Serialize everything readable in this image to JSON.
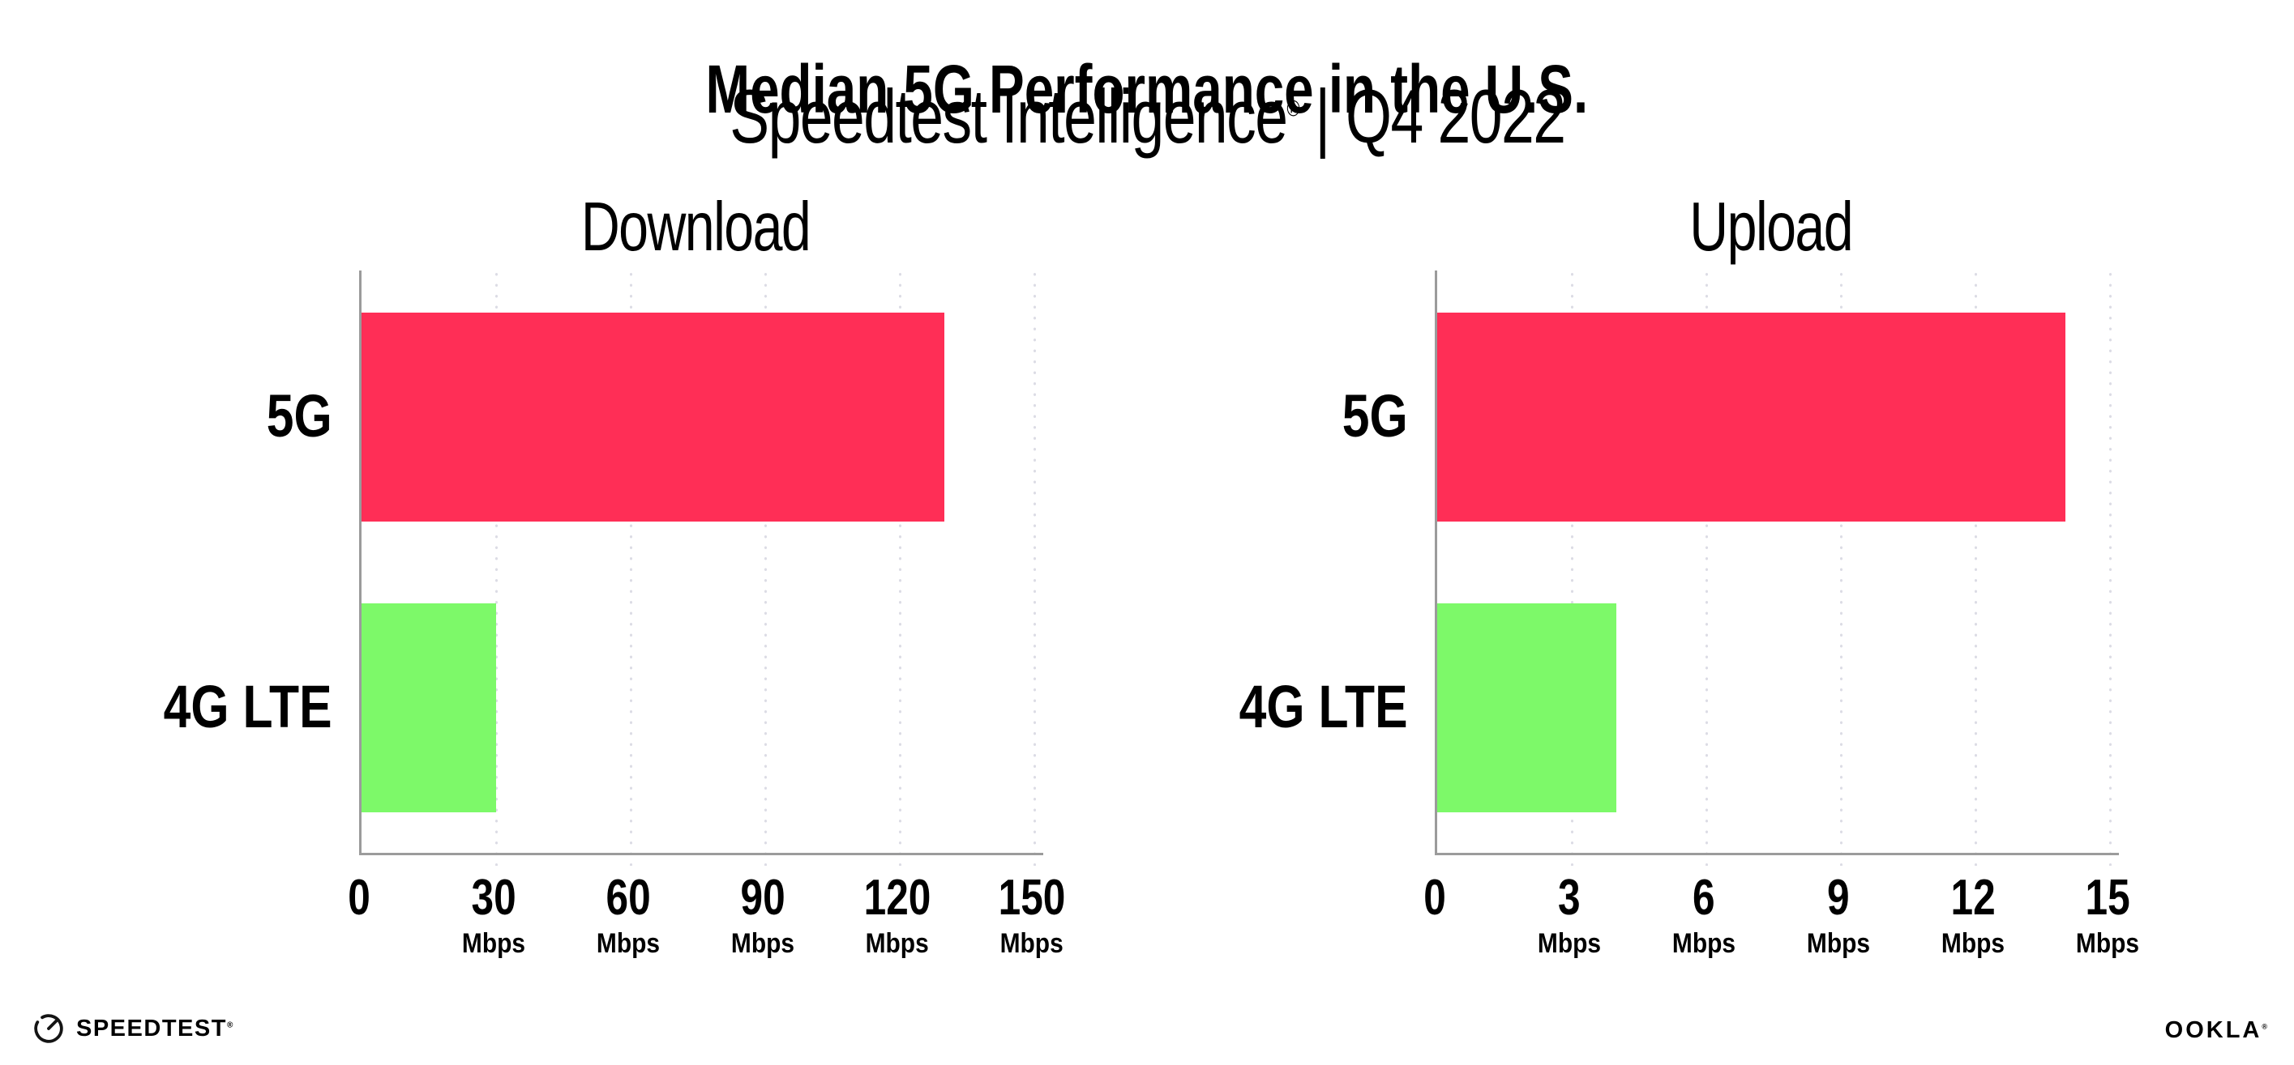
{
  "header": {
    "title": "Median 5G Performance in the U.S.",
    "subtitle": {
      "brand": "Speedtest Intelligence",
      "registered": "®",
      "separator": "|",
      "period": "Q4 2022"
    }
  },
  "chart_data": [
    {
      "type": "bar",
      "orientation": "horizontal",
      "title": "Download",
      "categories": [
        "5G",
        "4G LTE"
      ],
      "values": [
        130,
        30
      ],
      "unit": "Mbps",
      "xlim": [
        0,
        150
      ],
      "xticks": [
        0,
        30,
        60,
        90,
        120,
        150
      ],
      "bar_colors": [
        "#FF2E56",
        "#7DF969"
      ],
      "grid": "vertical-dotted",
      "legend": "none"
    },
    {
      "type": "bar",
      "orientation": "horizontal",
      "title": "Upload",
      "categories": [
        "5G",
        "4G LTE"
      ],
      "values": [
        14,
        4
      ],
      "unit": "Mbps",
      "xlim": [
        0,
        15
      ],
      "xticks": [
        0,
        3,
        6,
        9,
        12,
        15
      ],
      "bar_colors": [
        "#FF2E56",
        "#7DF969"
      ],
      "grid": "vertical-dotted",
      "legend": "none"
    }
  ],
  "footer": {
    "speedtest_label": "SPEEDTEST",
    "speedtest_mark": "®",
    "ookla_label": "OOKLA",
    "ookla_mark": "®"
  },
  "colors": {
    "bar_5g": "#FF2E56",
    "bar_4g_lte": "#7DF969",
    "axis": "#9B9B9B",
    "grid_dot": "#DCDCE5",
    "text": "#000000"
  }
}
